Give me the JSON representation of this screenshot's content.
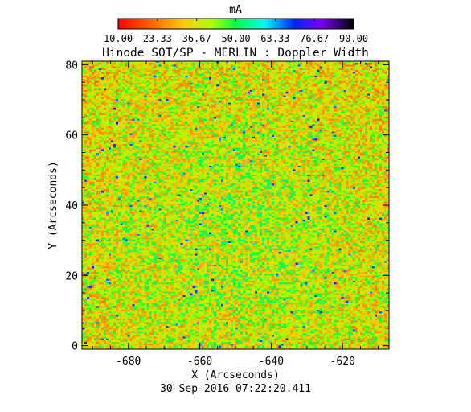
{
  "colorbar": {
    "unit": "mA",
    "ticks": [
      "10.00",
      "23.33",
      "36.67",
      "50.00",
      "63.33",
      "76.67",
      "90.00"
    ],
    "range": [
      10,
      90
    ],
    "colors": [
      "#ff0000",
      "#ff8800",
      "#ffff00",
      "#00ff00",
      "#00ffff",
      "#0000ff",
      "#8000ff",
      "#000000"
    ]
  },
  "title": "Hinode SOT/SP - MERLIN : Doppler Width",
  "x_axis": {
    "label": "X (Arcseconds)",
    "ticks": [
      "-680",
      "-660",
      "-640",
      "-620"
    ]
  },
  "y_axis": {
    "label": "Y (Arcseconds)",
    "ticks": [
      "0",
      "20",
      "40",
      "60",
      "80"
    ]
  },
  "timestamp": "30-Sep-2016 07:22:20.411",
  "chart_data": {
    "type": "heatmap",
    "title": "Hinode SOT/SP - MERLIN : Doppler Width",
    "xlabel": "X (Arcseconds)",
    "ylabel": "Y (Arcseconds)",
    "xlim": [
      -693,
      -607
    ],
    "ylim": [
      -1,
      81
    ],
    "value_unit": "mA",
    "value_range": [
      10,
      90
    ],
    "grid": false,
    "legend": "top (colorbar)"
  }
}
